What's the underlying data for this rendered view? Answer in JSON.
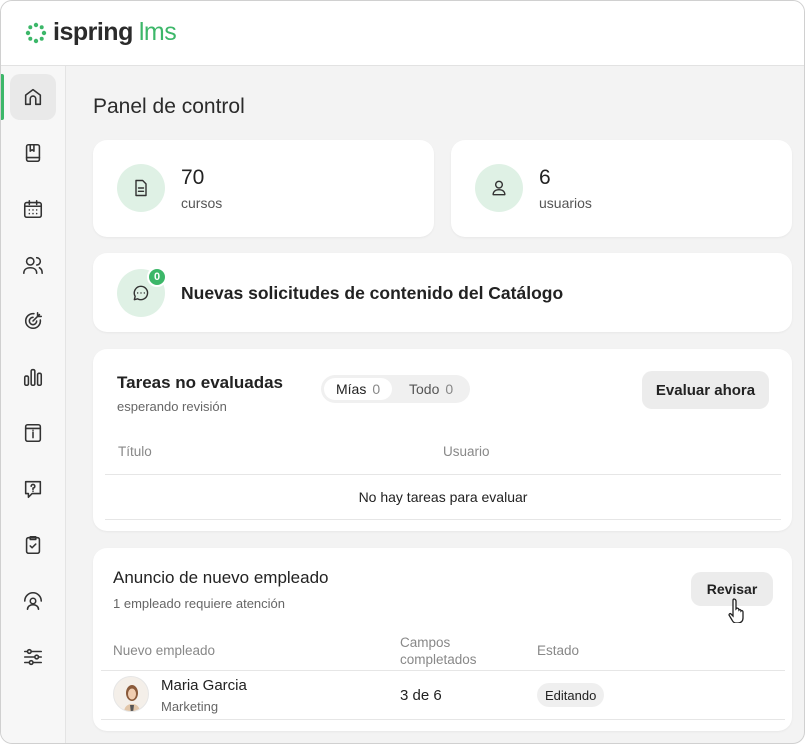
{
  "app": {
    "logo_main": "ispring",
    "logo_sub": "lms",
    "accent": "#3cb769"
  },
  "sidebar": {
    "items": [
      {
        "icon": "home-icon",
        "active": true
      },
      {
        "icon": "book-icon"
      },
      {
        "icon": "calendar-icon"
      },
      {
        "icon": "users-icon"
      },
      {
        "icon": "target-icon"
      },
      {
        "icon": "bar-chart-icon"
      },
      {
        "icon": "info-icon"
      },
      {
        "icon": "question-icon"
      },
      {
        "icon": "clipboard-check-icon"
      },
      {
        "icon": "user-support-icon"
      },
      {
        "icon": "sliders-icon"
      }
    ]
  },
  "page": {
    "title": "Panel de control"
  },
  "stats": [
    {
      "value": "70",
      "label": "cursos",
      "icon": "document-icon"
    },
    {
      "value": "6",
      "label": "usuarios",
      "icon": "user-icon"
    }
  ],
  "catalog": {
    "badge": "0",
    "text": "Nuevas solicitudes de contenido del Catálogo"
  },
  "tasks": {
    "title": "Tareas no evaluadas",
    "subtitle": "esperando revisión",
    "tabs": [
      {
        "label": "Mías",
        "count": "0"
      },
      {
        "label": "Todo",
        "count": "0"
      }
    ],
    "button": "Evaluar ahora",
    "columns": [
      "Título",
      "Usuario"
    ],
    "empty": "No hay tareas para evaluar"
  },
  "announce": {
    "title": "Anuncio de nuevo empleado",
    "subtitle": "1 empleado requiere atención",
    "button": "Revisar",
    "columns": [
      "Nuevo empleado",
      "Campos completados",
      "Estado"
    ],
    "rows": [
      {
        "name": "Maria Garcia",
        "dept": "Marketing",
        "fields": "3 de 6",
        "status": "Editando"
      }
    ]
  }
}
